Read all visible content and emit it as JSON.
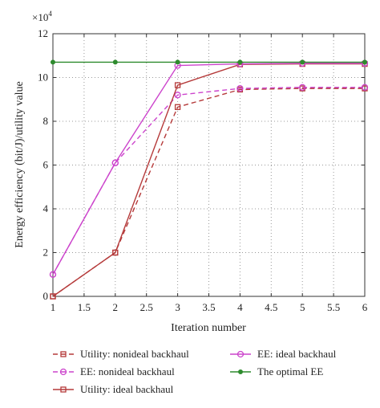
{
  "chart_data": {
    "type": "line",
    "xlabel": "Iteration number",
    "ylabel": "Energy efficiency (bit/J)/utility value",
    "y_multiplier": "×10",
    "y_multiplier_exp": "4",
    "xlim": [
      1,
      6
    ],
    "ylim": [
      0,
      12
    ],
    "grid": true,
    "grid_style": "dotted",
    "legend_position": "below",
    "x_ticks": [
      "1",
      "1.5",
      "2",
      "2.5",
      "3",
      "3.5",
      "4",
      "4.5",
      "5",
      "5.5",
      "6"
    ],
    "y_ticks": [
      "0",
      "2",
      "4",
      "6",
      "8",
      "10",
      "12"
    ],
    "x": [
      1,
      2,
      3,
      4,
      5,
      6
    ],
    "series": [
      {
        "name": "Utility: nonideal backhaul",
        "color": "#b53a3a",
        "dash": "dashed",
        "marker": "square",
        "values": [
          0,
          2.0,
          8.65,
          9.45,
          9.5,
          9.5
        ]
      },
      {
        "name": "EE: nonideal backhaul",
        "color": "#cc44cc",
        "dash": "dashed",
        "marker": "circle",
        "values": [
          1.0,
          6.1,
          9.2,
          9.5,
          9.55,
          9.55
        ]
      },
      {
        "name": "Utility: ideal backhaul",
        "color": "#b53a3a",
        "dash": "solid",
        "marker": "square",
        "values": [
          0,
          2.0,
          9.65,
          10.6,
          10.62,
          10.62
        ]
      },
      {
        "name": "EE: ideal backhaul",
        "color": "#cc44cc",
        "dash": "solid",
        "marker": "circle",
        "values": [
          1.0,
          6.1,
          10.55,
          10.62,
          10.65,
          10.65
        ]
      },
      {
        "name": "The optimal EE",
        "color": "#2e8b2e",
        "dash": "solid",
        "marker": "dot",
        "values": [
          10.7,
          10.7,
          10.7,
          10.7,
          10.7,
          10.7
        ]
      }
    ]
  }
}
